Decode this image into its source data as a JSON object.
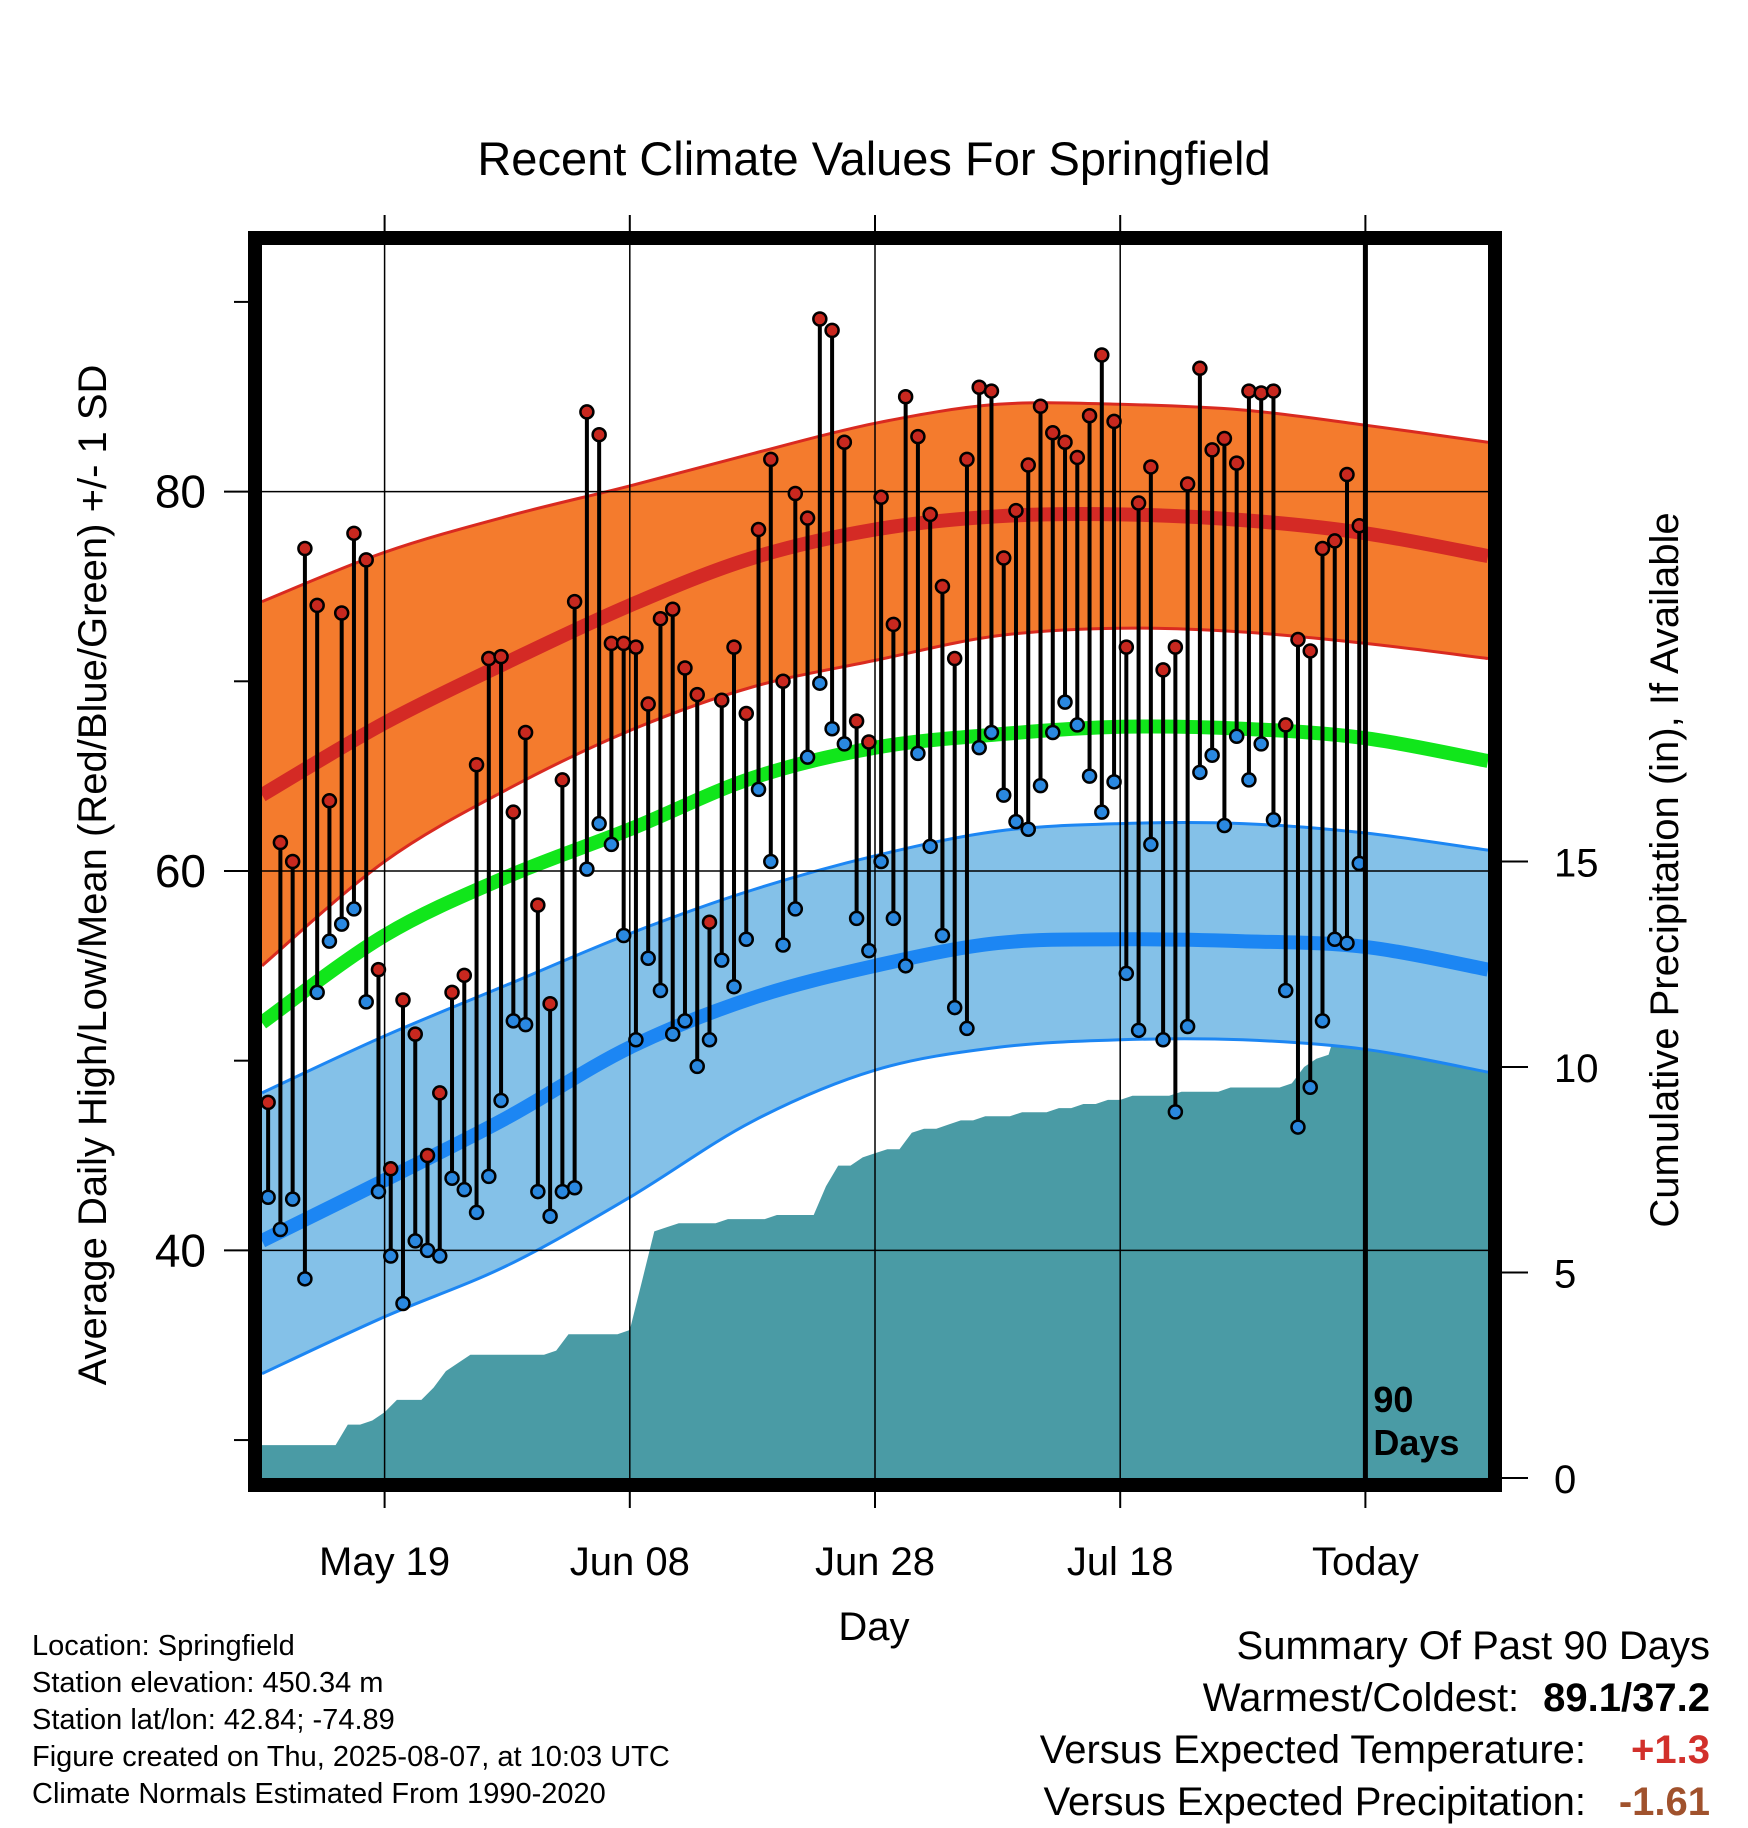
{
  "chart_data": {
    "type": "line",
    "title": "Recent Climate Values For Springfield",
    "xlabel": "Day",
    "ylabel_left": "Average Daily High/Low/Mean (Red/Blue/Green) +/- 1 SD",
    "ylabel_right": "Cumulative Precipitation (in), If Available",
    "x_tick_labels": [
      {
        "day": 10,
        "label": "May 19"
      },
      {
        "day": 30,
        "label": "Jun 08"
      },
      {
        "day": 50,
        "label": "Jun 28"
      },
      {
        "day": 70,
        "label": "Jul 18"
      },
      {
        "day": 90,
        "label": "Today"
      }
    ],
    "xlim": [
      0,
      100
    ],
    "ylim_left": [
      28,
      93
    ],
    "ylim_right": [
      0,
      30
    ],
    "y_left_ticks": [
      40,
      60,
      80
    ],
    "y_right_ticks": [
      0,
      5,
      10,
      15
    ],
    "today_day": 90,
    "today_marker_label": [
      "90",
      "Days"
    ],
    "normals": {
      "day": [
        0,
        10,
        20,
        30,
        40,
        50,
        60,
        70,
        80,
        90,
        100
      ],
      "high_mean": [
        64.0,
        67.8,
        71.0,
        74.0,
        76.5,
        78.0,
        78.7,
        78.8,
        78.5,
        77.8,
        76.6
      ],
      "high_upper": [
        74.2,
        76.8,
        78.7,
        80.3,
        82.0,
        83.6,
        84.6,
        84.6,
        84.3,
        83.5,
        82.6
      ],
      "high_lower": [
        55.0,
        60.5,
        64.3,
        67.4,
        69.7,
        71.1,
        72.4,
        72.8,
        72.6,
        72.0,
        71.2
      ],
      "mean": [
        52.0,
        56.6,
        59.7,
        62.2,
        64.9,
        66.5,
        67.2,
        67.6,
        67.5,
        67.0,
        65.8
      ],
      "low_mean": [
        40.5,
        43.7,
        47.0,
        50.7,
        53.3,
        55.0,
        56.2,
        56.4,
        56.3,
        56.0,
        54.8
      ],
      "low_upper": [
        48.3,
        51.3,
        54.0,
        56.7,
        59.0,
        60.8,
        62.1,
        62.5,
        62.5,
        62.0,
        61.1
      ],
      "low_lower": [
        33.5,
        36.5,
        39.2,
        42.8,
        46.8,
        49.5,
        50.7,
        51.1,
        51.1,
        50.6,
        49.4
      ]
    },
    "observed": {
      "high": [
        47.8,
        61.5,
        60.5,
        77.0,
        74.0,
        63.7,
        73.6,
        77.8,
        76.4,
        54.8,
        44.3,
        53.2,
        51.4,
        45.0,
        48.3,
        53.6,
        54.5,
        65.6,
        71.2,
        71.3,
        63.1,
        67.3,
        58.2,
        53.0,
        64.8,
        74.2,
        84.2,
        83.0,
        72.0,
        72.0,
        71.8,
        68.8,
        73.3,
        73.8,
        70.7,
        69.3,
        57.3,
        69.0,
        71.8,
        68.3,
        78.0,
        81.7,
        70.0,
        79.9,
        78.6,
        89.1,
        88.5,
        82.6,
        67.9,
        66.8,
        79.7,
        73.0,
        85.0,
        82.9,
        78.8,
        75.0,
        71.2,
        81.7,
        85.5,
        85.3,
        76.5,
        79.0,
        81.4,
        84.5,
        83.1,
        82.6,
        81.8,
        84.0,
        87.2,
        83.7,
        71.8,
        79.4,
        81.3,
        70.6,
        71.8,
        80.4,
        86.5,
        82.2,
        82.8,
        81.5,
        85.3,
        85.2,
        85.3,
        67.7,
        72.2,
        71.6,
        77.0,
        77.4,
        80.9,
        78.2
      ],
      "low": [
        42.8,
        41.1,
        42.7,
        38.5,
        53.6,
        56.3,
        57.2,
        58.0,
        53.1,
        43.1,
        39.7,
        37.2,
        40.5,
        40.0,
        39.7,
        43.8,
        43.2,
        42.0,
        43.9,
        47.9,
        52.1,
        51.9,
        43.1,
        41.8,
        43.1,
        43.3,
        60.1,
        62.5,
        61.4,
        56.6,
        51.1,
        55.4,
        53.7,
        51.4,
        52.1,
        49.7,
        51.1,
        55.3,
        53.9,
        56.4,
        64.3,
        60.5,
        56.1,
        58.0,
        66.0,
        69.9,
        67.5,
        66.7,
        57.5,
        55.8,
        60.5,
        57.5,
        55.0,
        66.2,
        61.3,
        56.6,
        52.8,
        51.7,
        66.5,
        67.3,
        64.0,
        62.6,
        62.2,
        64.5,
        67.3,
        68.9,
        67.7,
        65.0,
        63.1,
        64.7,
        54.6,
        51.6,
        61.4,
        51.1,
        47.3,
        51.8,
        65.2,
        66.1,
        62.4,
        67.1,
        64.8,
        66.7,
        62.7,
        53.7,
        46.5,
        48.6,
        52.1,
        56.4,
        56.2,
        60.4
      ]
    },
    "precip": {
      "day": [
        0,
        6,
        7,
        8,
        9,
        10,
        11,
        12,
        13,
        14,
        15,
        16,
        17,
        18,
        19,
        20,
        21,
        22,
        23,
        24,
        25,
        26,
        27,
        28,
        29,
        30,
        31,
        32,
        33,
        34,
        35,
        36,
        37,
        38,
        39,
        40,
        41,
        42,
        43,
        44,
        45,
        46,
        47,
        48,
        49,
        50,
        51,
        52,
        53,
        54,
        55,
        56,
        57,
        58,
        59,
        60,
        61,
        62,
        63,
        64,
        65,
        66,
        67,
        68,
        69,
        70,
        71,
        72,
        73,
        74,
        75,
        76,
        77,
        78,
        79,
        80,
        81,
        82,
        83,
        84,
        85,
        86,
        87,
        88,
        89,
        90,
        100
      ],
      "cumulative": [
        0.8,
        0.8,
        1.3,
        1.3,
        1.4,
        1.6,
        1.9,
        1.9,
        1.9,
        2.2,
        2.6,
        2.8,
        3.0,
        3.0,
        3.0,
        3.0,
        3.0,
        3.0,
        3.0,
        3.1,
        3.5,
        3.5,
        3.5,
        3.5,
        3.5,
        3.6,
        4.8,
        6.0,
        6.1,
        6.2,
        6.2,
        6.2,
        6.2,
        6.3,
        6.3,
        6.3,
        6.3,
        6.4,
        6.4,
        6.4,
        6.4,
        7.1,
        7.6,
        7.6,
        7.8,
        7.9,
        8.0,
        8.0,
        8.4,
        8.5,
        8.5,
        8.6,
        8.7,
        8.7,
        8.8,
        8.8,
        8.8,
        8.9,
        8.9,
        8.9,
        9.0,
        9.0,
        9.1,
        9.1,
        9.2,
        9.2,
        9.3,
        9.3,
        9.3,
        9.3,
        9.4,
        9.4,
        9.4,
        9.4,
        9.5,
        9.5,
        9.5,
        9.5,
        9.5,
        9.6,
        10.0,
        10.2,
        10.3,
        11.3,
        11.4,
        11.4,
        11.4
      ]
    },
    "colors": {
      "high_band": "#f47b2d",
      "high_band_edge": "#d92a20",
      "high_mean_line": "#d42a25",
      "mean_line": "#11e61b",
      "low_band": "#84c1e8",
      "low_band_edge": "#1c86f3",
      "low_mean_line": "#1c86f3",
      "precip_fill": "#4a9ba5",
      "high_point": "#c8281f",
      "low_point": "#2a88e0"
    },
    "grid": true
  },
  "footer": {
    "location": "Location: Springfield",
    "elevation": "Station elevation: 450.34 m",
    "latlon": "Station lat/lon: 42.84; -74.89",
    "created": "Figure created on Thu, 2025-08-07, at 10:03 UTC",
    "normals_note": "Climate Normals Estimated From 1990-2020"
  },
  "summary": {
    "heading": "Summary Of Past 90 Days",
    "warmest_coldest_label": "Warmest/Coldest:",
    "warmest_coldest_value": "89.1/37.2",
    "temp_label": "Versus Expected Temperature:",
    "temp_value": "+1.3",
    "temp_color": "#d2302b",
    "precip_label": "Versus Expected Precipitation:",
    "precip_value": "-1.61",
    "precip_color": "#a0522d"
  }
}
